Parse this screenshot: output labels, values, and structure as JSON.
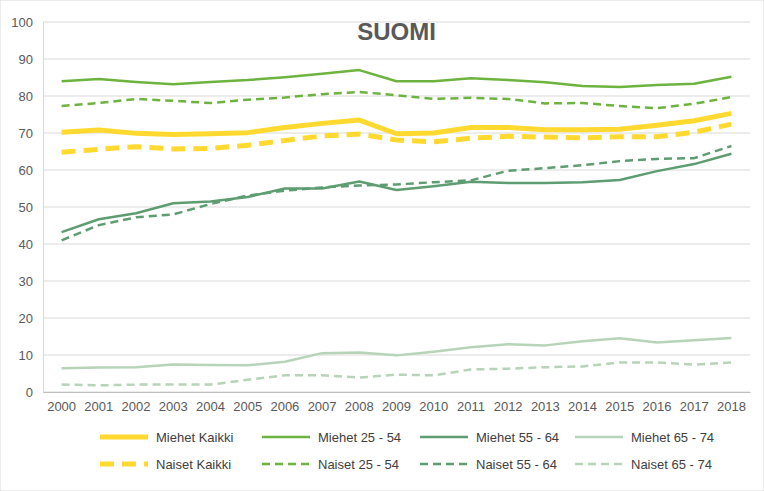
{
  "chart_data": {
    "type": "line",
    "title": "SUOMI",
    "categories": [
      "2000",
      "2001",
      "2002",
      "2003",
      "2004",
      "2005",
      "2006",
      "2007",
      "2008",
      "2009",
      "2010",
      "2011",
      "2012",
      "2013",
      "2014",
      "2015",
      "2016",
      "2017",
      "2018"
    ],
    "ylim": [
      0,
      100
    ],
    "yticks": [
      0,
      10,
      20,
      30,
      40,
      50,
      60,
      70,
      80,
      90,
      100
    ],
    "grid": true,
    "legend": "bottom",
    "series": [
      {
        "name": "Miehet Kaikki",
        "color": "#ffd92f",
        "line_style": "solid",
        "values": [
          70.2,
          70.8,
          69.9,
          69.6,
          69.8,
          70.1,
          71.5,
          72.6,
          73.5,
          69.8,
          70.0,
          71.5,
          71.5,
          70.9,
          70.9,
          71.0,
          72.1,
          73.3,
          75.3
        ]
      },
      {
        "name": "Miehet 25 - 54",
        "color": "#6db33f",
        "line_style": "solid",
        "values": [
          84.0,
          84.6,
          83.8,
          83.2,
          83.8,
          84.3,
          85.1,
          86.0,
          87.0,
          84.0,
          84.0,
          84.8,
          84.3,
          83.7,
          82.7,
          82.4,
          83.0,
          83.3,
          85.2
        ]
      },
      {
        "name": "Miehet 55 - 64",
        "color": "#5e9c72",
        "line_style": "solid",
        "values": [
          43.2,
          46.7,
          48.3,
          51.0,
          51.5,
          52.7,
          55.0,
          55.0,
          56.9,
          54.6,
          55.6,
          56.8,
          56.5,
          56.5,
          56.7,
          57.3,
          59.7,
          61.6,
          64.4
        ]
      },
      {
        "name": "Miehet 65 - 74",
        "color": "#b7d3b8",
        "line_style": "solid",
        "values": [
          6.4,
          6.6,
          6.7,
          7.4,
          7.3,
          7.2,
          8.2,
          10.5,
          10.7,
          9.9,
          10.9,
          12.1,
          12.9,
          12.6,
          13.7,
          14.5,
          13.4,
          14.0,
          14.6
        ]
      },
      {
        "name": "Naiset Kaikki",
        "color": "#ffd92f",
        "line_style": "dashed",
        "values": [
          64.8,
          65.6,
          66.3,
          65.7,
          65.8,
          66.7,
          68.0,
          69.2,
          69.7,
          68.1,
          67.6,
          68.6,
          69.1,
          68.9,
          68.7,
          69.0,
          69.0,
          70.2,
          72.4
        ]
      },
      {
        "name": "Naiset 25 - 54",
        "color": "#6db33f",
        "line_style": "dashed",
        "values": [
          77.3,
          78.1,
          79.2,
          78.7,
          78.1,
          79.0,
          79.6,
          80.5,
          81.1,
          80.2,
          79.2,
          79.5,
          79.2,
          78.0,
          78.1,
          77.3,
          76.7,
          77.9,
          79.7
        ]
      },
      {
        "name": "Naiset 55 - 64",
        "color": "#5e9c72",
        "line_style": "dashed",
        "values": [
          41.0,
          45.1,
          47.2,
          48.0,
          50.8,
          53.1,
          54.4,
          55.3,
          55.8,
          56.1,
          56.7,
          57.2,
          59.8,
          60.5,
          61.3,
          62.4,
          63.0,
          63.2,
          66.5
        ]
      },
      {
        "name": "Naiset 65 - 74",
        "color": "#b7d3b8",
        "line_style": "dashed",
        "values": [
          2.0,
          1.8,
          2.0,
          2.0,
          2.0,
          3.3,
          4.5,
          4.5,
          3.9,
          4.7,
          4.5,
          6.1,
          6.3,
          6.7,
          6.9,
          8.0,
          8.0,
          7.4,
          8.0
        ]
      }
    ]
  }
}
